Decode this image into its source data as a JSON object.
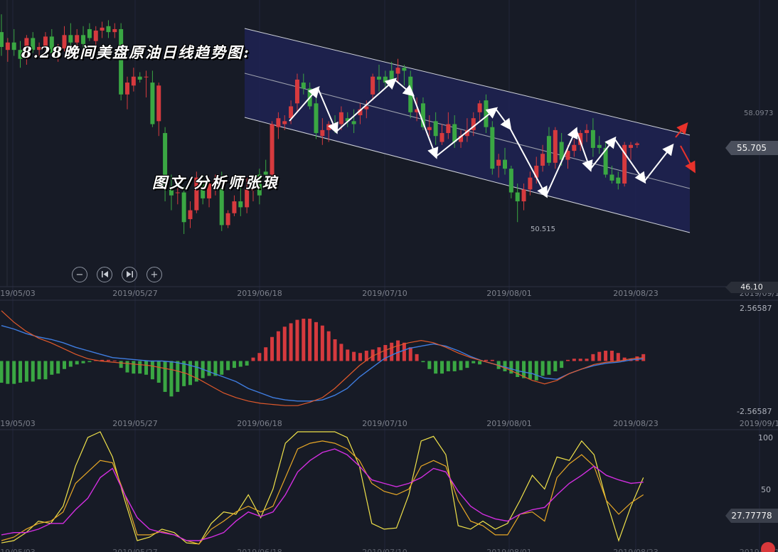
{
  "overlay": {
    "title": "8.28晚间美盘原油日线趋势图:",
    "author": "图文/分析师张琅"
  },
  "toolbar": {
    "zoom_out_icon": "minus-circle-icon",
    "prev_icon": "skip-back-icon",
    "next_icon": "skip-forward-icon",
    "zoom_in_icon": "plus-circle-icon"
  },
  "price_axis": {
    "current_price": "55.705",
    "ref_price": "58.0973",
    "low_price": "46.10",
    "annotated_low": "50.515"
  },
  "macd_axis": {
    "top": "2.56587",
    "bottom": "-2.56587"
  },
  "kdj_axis": {
    "top": "100",
    "mid": "50",
    "current": "27.77778"
  },
  "colors": {
    "background": "#171b26",
    "up": "#d63a3e",
    "down": "#3aa743",
    "channel_fill": "#1e2254",
    "diff_line": "#3f7de0",
    "dea_line": "#e0592b",
    "k_line": "#e8a826",
    "d_line": "#f0e24a",
    "j_line": "#d22ee0",
    "arrow_white": "#ffffff",
    "arrow_red": "#e8322b"
  },
  "chart_data": {
    "type": "candlestick",
    "x_ticks": [
      "2019/05/03",
      "2019/05/27",
      "2019/06/18",
      "2019/07/10",
      "2019/08/01",
      "2019/08/23",
      "2019/09/1"
    ],
    "price_range": [
      46.1,
      64.5
    ],
    "candles": [
      {
        "o": 63.2,
        "h": 64.4,
        "l": 61.6,
        "c": 62.2
      },
      {
        "o": 62.0,
        "h": 62.8,
        "l": 61.2,
        "c": 62.5
      },
      {
        "o": 62.5,
        "h": 63.4,
        "l": 61.6,
        "c": 62.0
      },
      {
        "o": 62.0,
        "h": 62.6,
        "l": 60.8,
        "c": 61.4
      },
      {
        "o": 61.4,
        "h": 63.0,
        "l": 61.0,
        "c": 62.8
      },
      {
        "o": 62.8,
        "h": 63.2,
        "l": 61.8,
        "c": 62.0
      },
      {
        "o": 62.0,
        "h": 62.5,
        "l": 61.6,
        "c": 62.2
      },
      {
        "o": 62.2,
        "h": 63.2,
        "l": 61.8,
        "c": 62.9
      },
      {
        "o": 62.9,
        "h": 63.4,
        "l": 61.6,
        "c": 61.8
      },
      {
        "o": 61.8,
        "h": 62.4,
        "l": 61.2,
        "c": 62.1
      },
      {
        "o": 62.1,
        "h": 63.6,
        "l": 61.9,
        "c": 63.0
      },
      {
        "o": 63.0,
        "h": 63.8,
        "l": 62.2,
        "c": 62.5
      },
      {
        "o": 62.5,
        "h": 63.4,
        "l": 62.0,
        "c": 63.0
      },
      {
        "o": 63.0,
        "h": 63.6,
        "l": 62.0,
        "c": 62.4
      },
      {
        "o": 63.4,
        "h": 63.8,
        "l": 62.6,
        "c": 62.8
      },
      {
        "o": 62.6,
        "h": 63.6,
        "l": 62.1,
        "c": 63.3
      },
      {
        "o": 63.3,
        "h": 63.9,
        "l": 62.8,
        "c": 63.5
      },
      {
        "o": 63.6,
        "h": 64.0,
        "l": 62.8,
        "c": 63.2
      },
      {
        "o": 63.2,
        "h": 63.8,
        "l": 62.8,
        "c": 63.4
      },
      {
        "o": 63.4,
        "h": 63.8,
        "l": 58.6,
        "c": 59.0
      },
      {
        "o": 59.0,
        "h": 60.2,
        "l": 58.0,
        "c": 59.8
      },
      {
        "o": 59.6,
        "h": 60.8,
        "l": 59.2,
        "c": 60.2
      },
      {
        "o": 60.2,
        "h": 60.5,
        "l": 59.8,
        "c": 60.0
      },
      {
        "o": 60.2,
        "h": 60.6,
        "l": 58.8,
        "c": 60.2
      },
      {
        "o": 59.8,
        "h": 60.6,
        "l": 56.8,
        "c": 57.0
      },
      {
        "o": 57.2,
        "h": 59.8,
        "l": 56.2,
        "c": 59.6
      },
      {
        "o": 56.4,
        "h": 56.8,
        "l": 51.8,
        "c": 52.6
      },
      {
        "o": 52.8,
        "h": 53.6,
        "l": 51.2,
        "c": 52.2
      },
      {
        "o": 52.4,
        "h": 53.2,
        "l": 51.6,
        "c": 52.4
      },
      {
        "o": 52.4,
        "h": 52.8,
        "l": 49.6,
        "c": 50.4
      },
      {
        "o": 50.6,
        "h": 51.8,
        "l": 50.0,
        "c": 51.2
      },
      {
        "o": 51.2,
        "h": 53.8,
        "l": 51.0,
        "c": 53.4
      },
      {
        "o": 53.0,
        "h": 53.6,
        "l": 51.6,
        "c": 52.0
      },
      {
        "o": 52.0,
        "h": 53.4,
        "l": 51.4,
        "c": 53.0
      },
      {
        "o": 52.8,
        "h": 53.6,
        "l": 52.2,
        "c": 53.2
      },
      {
        "o": 53.0,
        "h": 53.8,
        "l": 49.8,
        "c": 50.2
      },
      {
        "o": 50.2,
        "h": 51.2,
        "l": 50.0,
        "c": 51.0
      },
      {
        "o": 51.0,
        "h": 52.2,
        "l": 50.8,
        "c": 51.8
      },
      {
        "o": 51.8,
        "h": 52.8,
        "l": 50.8,
        "c": 51.4
      },
      {
        "o": 51.4,
        "h": 53.4,
        "l": 51.0,
        "c": 52.6
      },
      {
        "o": 52.6,
        "h": 53.4,
        "l": 51.8,
        "c": 52.6
      },
      {
        "o": 53.6,
        "h": 54.0,
        "l": 51.6,
        "c": 52.2
      },
      {
        "o": 53.8,
        "h": 54.6,
        "l": 53.0,
        "c": 53.6
      },
      {
        "o": 53.6,
        "h": 57.2,
        "l": 53.2,
        "c": 57.0
      },
      {
        "o": 56.8,
        "h": 57.8,
        "l": 56.0,
        "c": 57.4
      },
      {
        "o": 57.0,
        "h": 57.6,
        "l": 56.6,
        "c": 57.2
      },
      {
        "o": 57.4,
        "h": 58.6,
        "l": 57.0,
        "c": 58.2
      },
      {
        "o": 58.4,
        "h": 60.4,
        "l": 57.8,
        "c": 60.0
      },
      {
        "o": 59.8,
        "h": 60.4,
        "l": 59.0,
        "c": 59.4
      },
      {
        "o": 59.4,
        "h": 59.8,
        "l": 58.0,
        "c": 58.2
      },
      {
        "o": 58.4,
        "h": 59.0,
        "l": 56.0,
        "c": 56.4
      },
      {
        "o": 56.2,
        "h": 57.4,
        "l": 55.6,
        "c": 56.6
      },
      {
        "o": 56.6,
        "h": 57.2,
        "l": 55.8,
        "c": 57.0
      },
      {
        "o": 57.0,
        "h": 57.6,
        "l": 56.4,
        "c": 56.8
      },
      {
        "o": 57.0,
        "h": 58.2,
        "l": 56.6,
        "c": 57.8
      },
      {
        "o": 57.4,
        "h": 57.8,
        "l": 56.8,
        "c": 57.2
      },
      {
        "o": 57.2,
        "h": 58.0,
        "l": 56.4,
        "c": 57.0
      },
      {
        "o": 57.6,
        "h": 58.4,
        "l": 57.0,
        "c": 58.0
      },
      {
        "o": 58.0,
        "h": 58.6,
        "l": 57.4,
        "c": 58.2
      },
      {
        "o": 59.0,
        "h": 60.4,
        "l": 58.6,
        "c": 60.2
      },
      {
        "o": 60.2,
        "h": 61.0,
        "l": 59.2,
        "c": 60.0
      },
      {
        "o": 60.2,
        "h": 60.6,
        "l": 59.4,
        "c": 59.8
      },
      {
        "o": 60.6,
        "h": 61.2,
        "l": 59.8,
        "c": 60.0
      },
      {
        "o": 60.4,
        "h": 61.4,
        "l": 59.8,
        "c": 60.8
      },
      {
        "o": 60.8,
        "h": 61.0,
        "l": 59.6,
        "c": 60.6
      },
      {
        "o": 60.2,
        "h": 60.6,
        "l": 57.4,
        "c": 57.8
      },
      {
        "o": 57.8,
        "h": 58.8,
        "l": 57.2,
        "c": 58.0
      },
      {
        "o": 58.4,
        "h": 58.8,
        "l": 56.6,
        "c": 56.8
      },
      {
        "o": 56.6,
        "h": 57.6,
        "l": 56.2,
        "c": 56.8
      },
      {
        "o": 57.2,
        "h": 57.8,
        "l": 55.6,
        "c": 56.2
      },
      {
        "o": 55.8,
        "h": 57.0,
        "l": 55.6,
        "c": 56.4
      },
      {
        "o": 56.4,
        "h": 57.8,
        "l": 56.0,
        "c": 57.0
      },
      {
        "o": 57.0,
        "h": 57.6,
        "l": 55.4,
        "c": 55.8
      },
      {
        "o": 55.8,
        "h": 56.6,
        "l": 55.4,
        "c": 56.2
      },
      {
        "o": 56.2,
        "h": 57.4,
        "l": 55.8,
        "c": 56.6
      },
      {
        "o": 56.6,
        "h": 57.8,
        "l": 56.2,
        "c": 57.4
      },
      {
        "o": 57.8,
        "h": 58.6,
        "l": 57.2,
        "c": 58.4
      },
      {
        "o": 58.6,
        "h": 59.0,
        "l": 56.4,
        "c": 56.8
      },
      {
        "o": 56.8,
        "h": 57.2,
        "l": 53.6,
        "c": 54.0
      },
      {
        "o": 54.2,
        "h": 55.0,
        "l": 53.4,
        "c": 54.6
      },
      {
        "o": 54.6,
        "h": 55.4,
        "l": 53.6,
        "c": 54.0
      },
      {
        "o": 54.0,
        "h": 54.2,
        "l": 52.0,
        "c": 52.4
      },
      {
        "o": 52.4,
        "h": 53.0,
        "l": 50.4,
        "c": 51.8
      },
      {
        "o": 51.8,
        "h": 53.0,
        "l": 51.2,
        "c": 52.6
      },
      {
        "o": 52.6,
        "h": 53.8,
        "l": 52.2,
        "c": 53.4
      },
      {
        "o": 53.4,
        "h": 54.8,
        "l": 53.0,
        "c": 54.2
      },
      {
        "o": 54.2,
        "h": 55.6,
        "l": 53.8,
        "c": 55.0
      },
      {
        "o": 56.2,
        "h": 56.8,
        "l": 54.2,
        "c": 54.4
      },
      {
        "o": 54.4,
        "h": 56.8,
        "l": 54.0,
        "c": 56.6
      },
      {
        "o": 55.8,
        "h": 56.4,
        "l": 54.2,
        "c": 54.6
      },
      {
        "o": 54.6,
        "h": 55.6,
        "l": 54.0,
        "c": 55.2
      },
      {
        "o": 55.2,
        "h": 56.0,
        "l": 54.8,
        "c": 55.6
      },
      {
        "o": 55.6,
        "h": 56.6,
        "l": 55.2,
        "c": 56.4
      },
      {
        "o": 56.4,
        "h": 57.0,
        "l": 55.8,
        "c": 56.6
      },
      {
        "o": 56.6,
        "h": 57.4,
        "l": 54.8,
        "c": 55.4
      },
      {
        "o": 55.6,
        "h": 56.2,
        "l": 55.0,
        "c": 55.4
      },
      {
        "o": 55.4,
        "h": 55.8,
        "l": 53.4,
        "c": 53.6
      },
      {
        "o": 53.6,
        "h": 54.2,
        "l": 53.0,
        "c": 53.2
      },
      {
        "o": 53.4,
        "h": 53.8,
        "l": 52.6,
        "c": 53.0
      },
      {
        "o": 53.0,
        "h": 55.8,
        "l": 52.8,
        "c": 55.6
      },
      {
        "o": 55.4,
        "h": 55.8,
        "l": 54.6,
        "c": 55.6
      },
      {
        "o": 55.6,
        "h": 55.8,
        "l": 55.4,
        "c": 55.7
      }
    ],
    "macd_range": [
      -2.56587,
      2.56587
    ],
    "macd_hist": [
      -0.95,
      -1.0,
      -1.0,
      -0.95,
      -0.9,
      -0.9,
      -0.8,
      -0.8,
      -0.6,
      -0.55,
      -0.35,
      -0.25,
      -0.15,
      -0.1,
      -0.05,
      0.05,
      0.05,
      0.05,
      0.02,
      -0.3,
      -0.5,
      -0.55,
      -0.55,
      -0.6,
      -0.8,
      -0.95,
      -1.35,
      -1.55,
      -1.35,
      -1.1,
      -1.05,
      -0.9,
      -0.75,
      -0.65,
      -0.65,
      -0.6,
      -0.4,
      -0.3,
      -0.25,
      -0.2,
      0.15,
      0.35,
      0.6,
      1.05,
      1.3,
      1.5,
      1.65,
      1.8,
      1.85,
      1.85,
      1.7,
      1.55,
      1.3,
      0.95,
      0.75,
      0.5,
      0.4,
      0.35,
      0.45,
      0.5,
      0.6,
      0.7,
      0.8,
      0.9,
      0.8,
      0.6,
      0.3,
      -0.05,
      -0.35,
      -0.55,
      -0.55,
      -0.45,
      -0.45,
      -0.4,
      -0.3,
      -0.1,
      -0.15,
      0.05,
      0.05,
      -0.35,
      -0.45,
      -0.55,
      -0.7,
      -0.75,
      -0.8,
      -0.85,
      -0.65,
      -0.6,
      -0.45,
      -0.3,
      0.05,
      0.1,
      0.1,
      0.1,
      0.3,
      0.4,
      0.45,
      0.45,
      0.35,
      0.15,
      0.1,
      0.2,
      0.3
    ],
    "diff": [
      1.55,
      1.4,
      1.2,
      1.05,
      0.95,
      0.8,
      0.6,
      0.45,
      0.3,
      0.15,
      0.1,
      0.05,
      0.0,
      0.0,
      -0.05,
      -0.15,
      -0.3,
      -0.5,
      -0.7,
      -0.9,
      -1.2,
      -1.4,
      -1.6,
      -1.7,
      -1.75,
      -1.75,
      -1.7,
      -1.5,
      -1.2,
      -0.7,
      -0.3,
      0.1,
      0.35,
      0.55,
      0.65,
      0.75,
      0.65,
      0.45,
      0.2,
      0.0,
      -0.15,
      -0.3,
      -0.45,
      -0.55,
      -0.75,
      -0.8,
      -0.55,
      -0.35,
      -0.2,
      -0.1,
      -0.05,
      0.05,
      0.1
    ],
    "dea": [
      2.2,
      1.7,
      1.3,
      1.0,
      0.8,
      0.55,
      0.3,
      0.1,
      0.0,
      -0.05,
      -0.1,
      -0.15,
      -0.2,
      -0.3,
      -0.4,
      -0.55,
      -0.8,
      -1.1,
      -1.4,
      -1.6,
      -1.75,
      -1.85,
      -1.9,
      -1.95,
      -1.95,
      -1.8,
      -1.6,
      -1.2,
      -0.7,
      -0.2,
      0.2,
      0.45,
      0.65,
      0.8,
      0.9,
      0.8,
      0.6,
      0.35,
      0.15,
      0.0,
      -0.15,
      -0.35,
      -0.6,
      -0.85,
      -1.0,
      -0.85,
      -0.55,
      -0.35,
      -0.15,
      -0.05,
      0.0,
      0.1,
      0.15
    ],
    "kdj_range": [
      0,
      100
    ],
    "k": [
      5,
      8,
      15,
      20,
      22,
      30,
      55,
      65,
      75,
      73,
      45,
      10,
      10,
      13,
      10,
      5,
      2,
      15,
      22,
      30,
      35,
      30,
      35,
      60,
      85,
      90,
      92,
      90,
      85,
      75,
      55,
      48,
      45,
      50,
      70,
      75,
      70,
      40,
      22,
      18,
      10,
      10,
      28,
      30,
      22,
      60,
      72,
      80,
      70,
      40,
      28,
      38,
      45
    ],
    "d": [
      3,
      5,
      12,
      22,
      20,
      35,
      70,
      95,
      100,
      78,
      40,
      5,
      8,
      15,
      12,
      3,
      2,
      20,
      30,
      28,
      45,
      25,
      50,
      90,
      100,
      100,
      100,
      100,
      95,
      70,
      20,
      15,
      16,
      45,
      92,
      96,
      80,
      18,
      15,
      22,
      15,
      20,
      40,
      62,
      50,
      78,
      75,
      92,
      80,
      40,
      5,
      35,
      60
    ],
    "j": [
      10,
      12,
      12,
      15,
      20,
      20,
      32,
      42,
      60,
      68,
      45,
      25,
      15,
      12,
      10,
      5,
      5,
      8,
      12,
      22,
      30,
      26,
      30,
      45,
      65,
      75,
      82,
      85,
      80,
      70,
      58,
      55,
      52,
      55,
      60,
      68,
      65,
      48,
      35,
      28,
      24,
      22,
      28,
      32,
      34,
      45,
      55,
      62,
      70,
      62,
      58,
      55,
      56
    ]
  }
}
